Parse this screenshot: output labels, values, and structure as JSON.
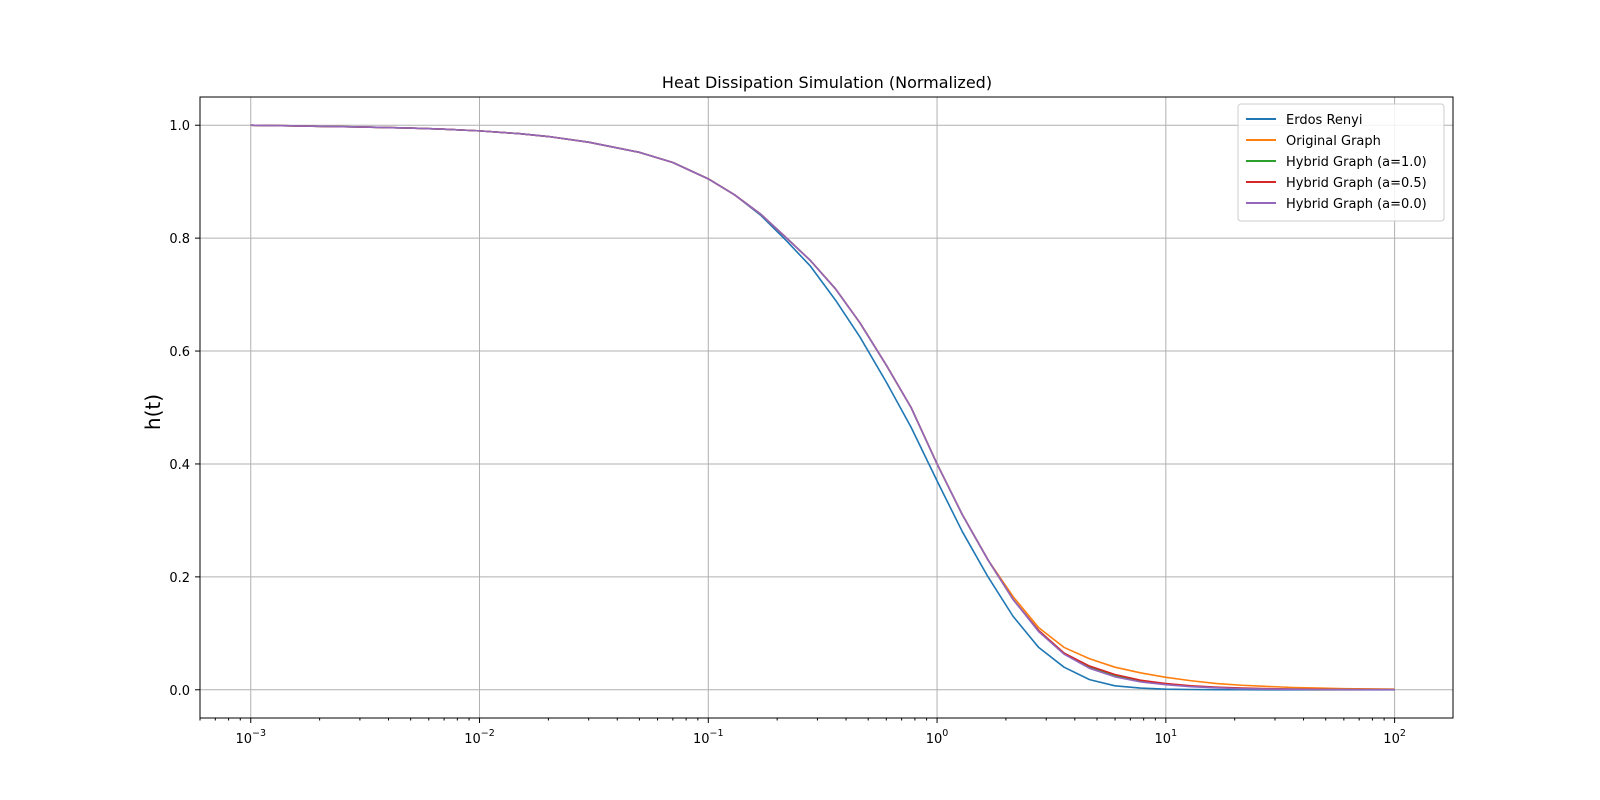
{
  "chart_data": {
    "type": "line",
    "title": "Heat Dissipation Simulation (Normalized)",
    "xlabel": "",
    "ylabel": "h(t)",
    "xscale": "log",
    "xlim": [
      0.0006,
      180
    ],
    "ylim": [
      -0.05,
      1.05
    ],
    "grid": true,
    "legend_position": "top-right",
    "x_ticks": [
      {
        "value": 0.001,
        "base": "10",
        "exp": "−3"
      },
      {
        "value": 0.01,
        "base": "10",
        "exp": "−2"
      },
      {
        "value": 0.1,
        "base": "10",
        "exp": "−1"
      },
      {
        "value": 1,
        "base": "10",
        "exp": "0"
      },
      {
        "value": 10,
        "base": "10",
        "exp": "1"
      },
      {
        "value": 100,
        "base": "10",
        "exp": "2"
      }
    ],
    "y_ticks": [
      {
        "value": 0.0,
        "label": "0.0"
      },
      {
        "value": 0.2,
        "label": "0.2"
      },
      {
        "value": 0.4,
        "label": "0.4"
      },
      {
        "value": 0.6,
        "label": "0.6"
      },
      {
        "value": 0.8,
        "label": "0.8"
      },
      {
        "value": 1.0,
        "label": "1.0"
      }
    ],
    "x": [
      0.001,
      0.0015,
      0.002,
      0.003,
      0.005,
      0.007,
      0.01,
      0.015,
      0.02,
      0.03,
      0.05,
      0.07,
      0.1,
      0.13,
      0.17,
      0.22,
      0.28,
      0.36,
      0.46,
      0.6,
      0.77,
      1.0,
      1.29,
      1.67,
      2.15,
      2.78,
      3.59,
      4.64,
      5.99,
      7.74,
      10.0,
      12.9,
      16.7,
      21.5,
      27.8,
      35.9,
      46.4,
      60,
      77.4,
      100
    ],
    "series": [
      {
        "name": "Erdos Renyi",
        "color": "#1f77b4",
        "values": [
          1.0,
          0.999,
          0.998,
          0.997,
          0.995,
          0.993,
          0.99,
          0.985,
          0.98,
          0.97,
          0.952,
          0.934,
          0.905,
          0.877,
          0.84,
          0.795,
          0.75,
          0.69,
          0.625,
          0.545,
          0.465,
          0.37,
          0.28,
          0.2,
          0.13,
          0.075,
          0.04,
          0.018,
          0.007,
          0.003,
          0.001,
          0.0005,
          0.0002,
          0.0001,
          0.0,
          0.0,
          0.0,
          0.0,
          0.0,
          0.0
        ]
      },
      {
        "name": "Original Graph",
        "color": "#ff7f0e",
        "values": [
          1.0,
          0.999,
          0.998,
          0.997,
          0.995,
          0.993,
          0.99,
          0.985,
          0.98,
          0.97,
          0.952,
          0.934,
          0.905,
          0.877,
          0.842,
          0.8,
          0.76,
          0.71,
          0.65,
          0.575,
          0.5,
          0.4,
          0.31,
          0.23,
          0.165,
          0.11,
          0.075,
          0.055,
          0.04,
          0.03,
          0.022,
          0.016,
          0.011,
          0.008,
          0.006,
          0.004,
          0.003,
          0.002,
          0.0015,
          0.001
        ]
      },
      {
        "name": "Hybrid Graph (a=1.0)",
        "color": "#2ca02c",
        "values": [
          1.0,
          0.999,
          0.998,
          0.997,
          0.995,
          0.993,
          0.99,
          0.985,
          0.98,
          0.97,
          0.952,
          0.934,
          0.905,
          0.877,
          0.842,
          0.8,
          0.76,
          0.71,
          0.65,
          0.575,
          0.5,
          0.4,
          0.31,
          0.23,
          0.16,
          0.105,
          0.065,
          0.04,
          0.025,
          0.016,
          0.01,
          0.006,
          0.004,
          0.0025,
          0.0015,
          0.001,
          0.0006,
          0.0004,
          0.0002,
          0.0001
        ]
      },
      {
        "name": "Hybrid Graph (a=0.5)",
        "color": "#d62728",
        "values": [
          1.0,
          0.999,
          0.998,
          0.997,
          0.995,
          0.993,
          0.99,
          0.985,
          0.98,
          0.97,
          0.952,
          0.934,
          0.905,
          0.877,
          0.842,
          0.8,
          0.76,
          0.71,
          0.65,
          0.575,
          0.5,
          0.4,
          0.31,
          0.23,
          0.16,
          0.105,
          0.065,
          0.042,
          0.027,
          0.017,
          0.011,
          0.007,
          0.0045,
          0.003,
          0.002,
          0.0012,
          0.0008,
          0.0005,
          0.0003,
          0.0002
        ]
      },
      {
        "name": "Hybrid Graph (a=0.0)",
        "color": "#9467bd",
        "values": [
          1.0,
          0.999,
          0.998,
          0.997,
          0.995,
          0.993,
          0.99,
          0.985,
          0.98,
          0.97,
          0.952,
          0.934,
          0.905,
          0.877,
          0.842,
          0.8,
          0.76,
          0.71,
          0.65,
          0.575,
          0.5,
          0.4,
          0.31,
          0.23,
          0.16,
          0.103,
          0.063,
          0.038,
          0.023,
          0.014,
          0.009,
          0.0055,
          0.0035,
          0.002,
          0.0013,
          0.0008,
          0.0005,
          0.0003,
          0.0002,
          0.0001
        ]
      }
    ]
  }
}
